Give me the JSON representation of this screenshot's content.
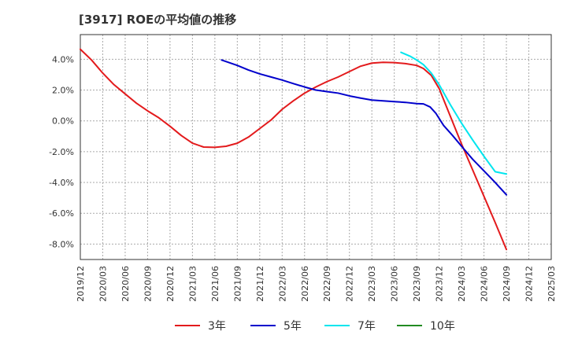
{
  "chart_data": {
    "type": "line",
    "title": "[3917]  ROEの平均値の推移",
    "xlabel": "",
    "ylabel": "",
    "x_ticks": [
      "2019/12",
      "2020/03",
      "2020/06",
      "2020/09",
      "2020/12",
      "2021/03",
      "2021/06",
      "2021/09",
      "2021/12",
      "2022/03",
      "2022/06",
      "2022/09",
      "2022/12",
      "2023/03",
      "2023/06",
      "2023/09",
      "2023/12",
      "2024/03",
      "2024/06",
      "2024/09",
      "2024/12",
      "2025/03"
    ],
    "y_ticks": [
      "4.0%",
      "2.0%",
      "0.0%",
      "-2.0%",
      "-4.0%",
      "-6.0%",
      "-8.0%"
    ],
    "y_tick_values": [
      4,
      2,
      0,
      -2,
      -4,
      -6,
      -8
    ],
    "ylim": [
      -9,
      5.6
    ],
    "xlim": [
      0,
      21
    ],
    "grid": true,
    "legend_position": "bottom",
    "series": [
      {
        "name": "3年",
        "color": "#e31a1c",
        "points": [
          [
            0,
            4.65
          ],
          [
            0.5,
            3.95
          ],
          [
            1,
            3.1
          ],
          [
            1.5,
            2.35
          ],
          [
            2,
            1.75
          ],
          [
            2.5,
            1.15
          ],
          [
            3,
            0.65
          ],
          [
            3.5,
            0.2
          ],
          [
            4,
            -0.35
          ],
          [
            4.5,
            -0.95
          ],
          [
            5,
            -1.45
          ],
          [
            5.5,
            -1.7
          ],
          [
            6,
            -1.72
          ],
          [
            6.5,
            -1.65
          ],
          [
            7,
            -1.45
          ],
          [
            7.5,
            -1.05
          ],
          [
            8,
            -0.5
          ],
          [
            8.5,
            0.05
          ],
          [
            9,
            0.75
          ],
          [
            9.5,
            1.3
          ],
          [
            10,
            1.8
          ],
          [
            10.5,
            2.2
          ],
          [
            11,
            2.55
          ],
          [
            11.5,
            2.85
          ],
          [
            12,
            3.2
          ],
          [
            12.5,
            3.55
          ],
          [
            13,
            3.75
          ],
          [
            13.5,
            3.8
          ],
          [
            14,
            3.78
          ],
          [
            14.5,
            3.72
          ],
          [
            15,
            3.6
          ],
          [
            15.3,
            3.4
          ],
          [
            15.65,
            2.95
          ],
          [
            16,
            2.1
          ],
          [
            16.5,
            0.3
          ],
          [
            17,
            -1.5
          ],
          [
            17.5,
            -3.2
          ],
          [
            18,
            -4.9
          ],
          [
            18.5,
            -6.6
          ],
          [
            19,
            -8.35
          ]
        ]
      },
      {
        "name": "5年",
        "color": "#0000cc",
        "points": [
          [
            6.3,
            3.95
          ],
          [
            7,
            3.6
          ],
          [
            7.5,
            3.3
          ],
          [
            8,
            3.05
          ],
          [
            8.5,
            2.85
          ],
          [
            9,
            2.65
          ],
          [
            9.5,
            2.42
          ],
          [
            10,
            2.2
          ],
          [
            10.5,
            2.0
          ],
          [
            11,
            1.9
          ],
          [
            11.5,
            1.8
          ],
          [
            12,
            1.62
          ],
          [
            12.5,
            1.48
          ],
          [
            13,
            1.35
          ],
          [
            13.5,
            1.3
          ],
          [
            14,
            1.25
          ],
          [
            14.5,
            1.2
          ],
          [
            15,
            1.12
          ],
          [
            15.3,
            1.1
          ],
          [
            15.6,
            0.9
          ],
          [
            15.85,
            0.5
          ],
          [
            16.2,
            -0.3
          ],
          [
            16.6,
            -0.95
          ],
          [
            17,
            -1.65
          ],
          [
            17.5,
            -2.5
          ],
          [
            18,
            -3.25
          ],
          [
            18.5,
            -4.0
          ],
          [
            19,
            -4.8
          ]
        ]
      },
      {
        "name": "7年",
        "color": "#00e5ee",
        "points": [
          [
            14.3,
            4.45
          ],
          [
            14.7,
            4.2
          ],
          [
            15,
            3.95
          ],
          [
            15.3,
            3.65
          ],
          [
            15.65,
            3.1
          ],
          [
            16,
            2.35
          ],
          [
            16.5,
            1.05
          ],
          [
            17,
            -0.15
          ],
          [
            17.5,
            -1.25
          ],
          [
            18,
            -2.3
          ],
          [
            18.5,
            -3.3
          ],
          [
            19,
            -3.45
          ]
        ]
      },
      {
        "name": "10年",
        "color": "#228b22",
        "points": []
      }
    ]
  }
}
